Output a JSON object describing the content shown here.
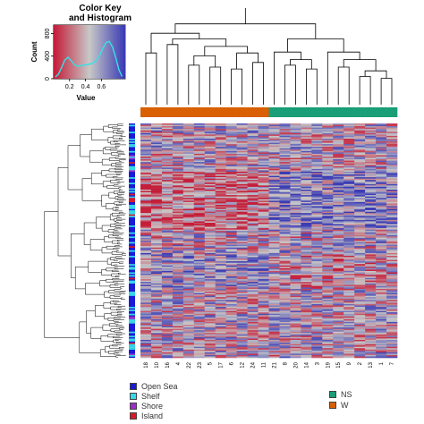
{
  "chart_data": {
    "type": "heatmap",
    "color_key": {
      "title": "Color Key and Histogram",
      "title_lines": [
        "Color Key",
        "and Histogram"
      ],
      "xlabel": "Value",
      "ylabel": "Count",
      "x_ticks": [
        "0.2",
        "0.4",
        "0.6"
      ],
      "y_ticks": [
        "0",
        "400",
        "800"
      ],
      "xlim": [
        0,
        0.9
      ],
      "ylim": [
        0,
        950
      ],
      "colors": {
        "low": "#c41e3a",
        "mid": "#c8c8c8",
        "high": "#3c3cb4"
      },
      "histogram_color": "#36e0e8",
      "histogram": {
        "x": [
          0.02,
          0.06,
          0.1,
          0.14,
          0.18,
          0.22,
          0.26,
          0.3,
          0.34,
          0.38,
          0.42,
          0.46,
          0.5,
          0.54,
          0.58,
          0.62,
          0.66,
          0.7,
          0.74,
          0.78,
          0.82,
          0.86
        ],
        "y": [
          30,
          80,
          200,
          330,
          380,
          320,
          250,
          220,
          230,
          240,
          250,
          260,
          280,
          330,
          420,
          540,
          640,
          660,
          560,
          380,
          160,
          40
        ]
      }
    },
    "columns": [
      "18",
      "10",
      "16",
      "4",
      "22",
      "23",
      "5",
      "17",
      "6",
      "12",
      "24",
      "11",
      "21",
      "8",
      "20",
      "14",
      "3",
      "19",
      "15",
      "9",
      "2",
      "13",
      "1",
      "7"
    ],
    "column_groups": [
      "W",
      "W",
      "W",
      "W",
      "W",
      "W",
      "W",
      "W",
      "W",
      "W",
      "W",
      "W",
      "NS",
      "NS",
      "NS",
      "NS",
      "NS",
      "NS",
      "NS",
      "NS",
      "NS",
      "NS",
      "NS",
      "NS"
    ],
    "row_categories": [
      "Open Sea",
      "Shelf",
      "Shore",
      "Island"
    ],
    "legend_left": [
      {
        "label": "Open Sea",
        "color": "#1a1ad8"
      },
      {
        "label": "Shelf",
        "color": "#38d8e8"
      },
      {
        "label": "Shore",
        "color": "#9a2fc8"
      },
      {
        "label": "Island",
        "color": "#d81a2a"
      }
    ],
    "legend_right": [
      {
        "label": "NS",
        "color": "#1a9e77"
      },
      {
        "label": "W",
        "color": "#d95f02"
      }
    ],
    "column_dendrogram": {
      "merges": [
        [
          0,
          1,
          0.58
        ],
        [
          4,
          5,
          0.42
        ],
        [
          6,
          7,
          0.4
        ],
        [
          8,
          9,
          0.35
        ],
        [
          10,
          11,
          0.25
        ],
        [
          2,
          3,
          0.78
        ],
        [
          12,
          13,
          0.7
        ],
        [
          14,
          15,
          0.72
        ],
        [
          16,
          17,
          0.6
        ],
        [
          18,
          19,
          0.78
        ],
        [
          20,
          21,
          0.82
        ],
        [
          22,
          23,
          0.8
        ]
      ],
      "note": ""
    }
  }
}
